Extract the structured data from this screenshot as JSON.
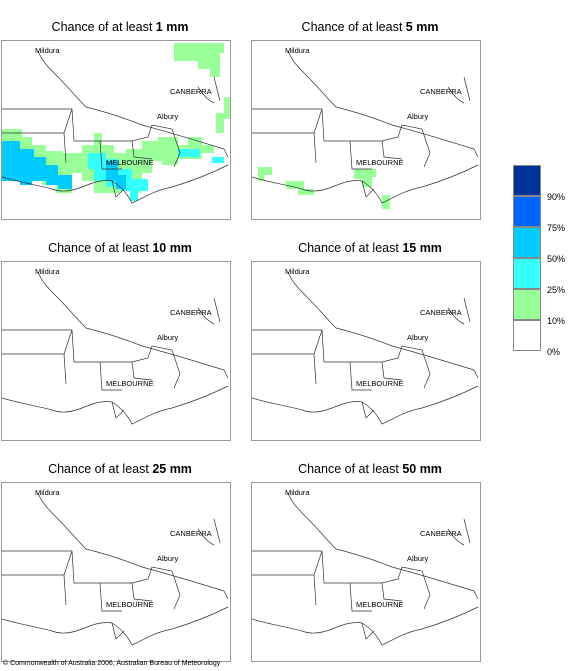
{
  "panels": [
    {
      "title_prefix": "Chance of at least ",
      "title_value": "1 mm"
    },
    {
      "title_prefix": "Chance of at least ",
      "title_value": "5 mm"
    },
    {
      "title_prefix": "Chance of at least ",
      "title_value": "10 mm"
    },
    {
      "title_prefix": "Chance of at least ",
      "title_value": "15 mm"
    },
    {
      "title_prefix": "Chance of at least ",
      "title_value": "25 mm"
    },
    {
      "title_prefix": "Chance of at least ",
      "title_value": "50 mm"
    }
  ],
  "places": {
    "mildura": "Mildura",
    "canberra": "CANBERRA",
    "albury": "Albury",
    "melbourne": "MELBOURNE"
  },
  "legend": {
    "labels": [
      "90%",
      "75%",
      "50%",
      "25%",
      "10%",
      "0%"
    ],
    "colors": [
      "#003399",
      "#0066ff",
      "#00ccff",
      "#33ffff",
      "#99ff99",
      "#ffffff"
    ]
  },
  "copyright": "© Commonwealth of Australia 2006, Australian Bureau of Meteorology"
}
